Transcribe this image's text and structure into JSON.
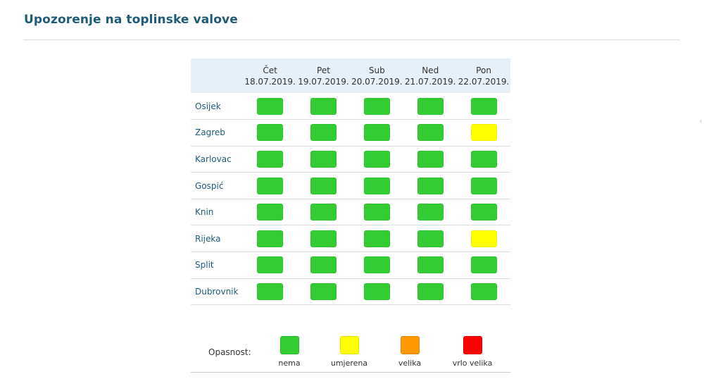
{
  "header": {
    "title": "Upozorenje na toplinske valove"
  },
  "colors": {
    "title": "#1f5a7a",
    "table_header_bg": "#e6f0f8",
    "nema": "#33cc33",
    "umjerena": "#ffff00",
    "velika": "#ff9900",
    "vrlo_velika": "#ff0000"
  },
  "table": {
    "days": [
      {
        "name": "Čet",
        "date": "18.07.2019."
      },
      {
        "name": "Pet",
        "date": "19.07.2019."
      },
      {
        "name": "Sub",
        "date": "20.07.2019."
      },
      {
        "name": "Ned",
        "date": "21.07.2019."
      },
      {
        "name": "Pon",
        "date": "22.07.2019."
      }
    ],
    "rows": [
      {
        "city": "Osijek",
        "levels": [
          "nema",
          "nema",
          "nema",
          "nema",
          "nema"
        ]
      },
      {
        "city": "Zagreb",
        "levels": [
          "nema",
          "nema",
          "nema",
          "nema",
          "umjerena"
        ]
      },
      {
        "city": "Karlovac",
        "levels": [
          "nema",
          "nema",
          "nema",
          "nema",
          "nema"
        ]
      },
      {
        "city": "Gospić",
        "levels": [
          "nema",
          "nema",
          "nema",
          "nema",
          "nema"
        ]
      },
      {
        "city": "Knin",
        "levels": [
          "nema",
          "nema",
          "nema",
          "nema",
          "nema"
        ]
      },
      {
        "city": "Rijeka",
        "levels": [
          "nema",
          "nema",
          "nema",
          "nema",
          "umjerena"
        ]
      },
      {
        "city": "Split",
        "levels": [
          "nema",
          "nema",
          "nema",
          "nema",
          "nema"
        ]
      },
      {
        "city": "Dubrovnik",
        "levels": [
          "nema",
          "nema",
          "nema",
          "nema",
          "nema"
        ]
      }
    ]
  },
  "legend": {
    "label": "Opasnost:",
    "items": [
      {
        "key": "nema",
        "text": "nema",
        "color": "#33cc33"
      },
      {
        "key": "umjerena",
        "text": "umjerena",
        "color": "#ffff00"
      },
      {
        "key": "velika",
        "text": "velika",
        "color": "#ff9900"
      },
      {
        "key": "vrlo_velika",
        "text": "vrlo velika",
        "color": "#ff0000"
      }
    ]
  }
}
